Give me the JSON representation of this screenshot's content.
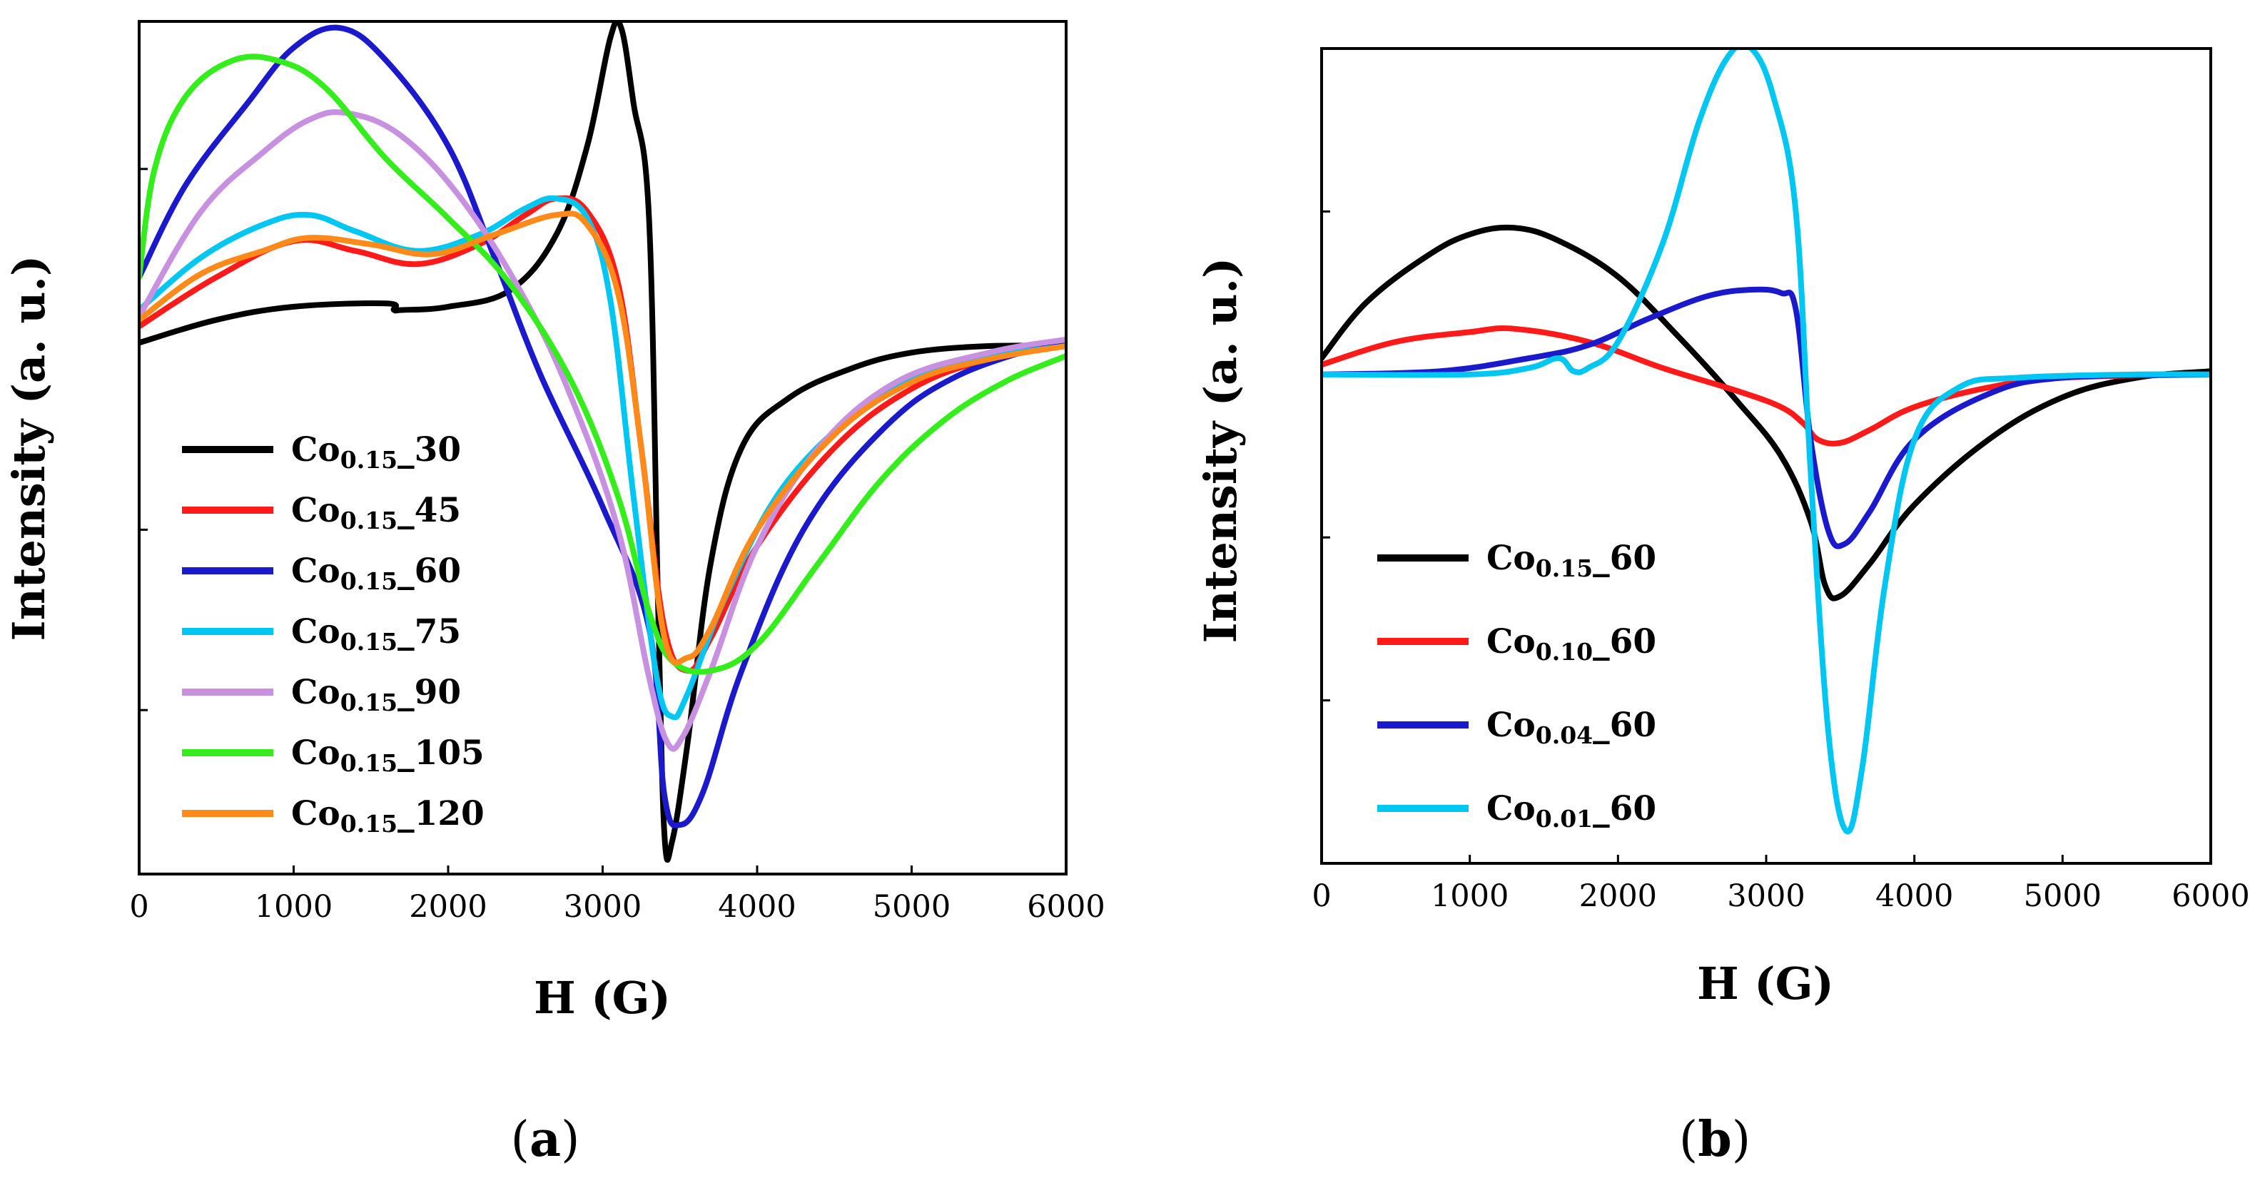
{
  "chart_data": [
    {
      "panel": "a",
      "panel_label_parts": [
        "(",
        "a",
        ")"
      ],
      "type": "line",
      "xlabel": "H (G)",
      "ylabel": "Intensity (a. u.)",
      "xlim": [
        0,
        6000
      ],
      "ylim": [
        -1.6,
        1.0
      ],
      "x_ticks": [
        0,
        1000,
        2000,
        3000,
        4000,
        5000,
        6000
      ],
      "y_ticks_unlabeled": [
        -1.1,
        -0.55,
        0.55
      ],
      "grid": false,
      "legend_position": "lower-left",
      "series": [
        {
          "name": "Co0.15_30",
          "label_base": "Co",
          "label_sub": "0.15",
          "label_suffix": "_30",
          "color": "#000000",
          "points": [
            [
              0,
              0.02
            ],
            [
              500,
              0.09
            ],
            [
              1000,
              0.13
            ],
            [
              1600,
              0.14
            ],
            [
              1650,
              0.12
            ],
            [
              1700,
              0.12
            ],
            [
              2000,
              0.13
            ],
            [
              2400,
              0.18
            ],
            [
              2700,
              0.35
            ],
            [
              2900,
              0.62
            ],
            [
              3050,
              0.95
            ],
            [
              3120,
              0.98
            ],
            [
              3200,
              0.75
            ],
            [
              3300,
              0.4
            ],
            [
              3360,
              -0.8
            ],
            [
              3400,
              -1.48
            ],
            [
              3450,
              -1.5
            ],
            [
              3550,
              -1.2
            ],
            [
              3700,
              -0.65
            ],
            [
              3900,
              -0.3
            ],
            [
              4200,
              -0.15
            ],
            [
              4600,
              -0.06
            ],
            [
              5000,
              -0.01
            ],
            [
              5500,
              0.01
            ],
            [
              6000,
              0.01
            ]
          ]
        },
        {
          "name": "Co0.15_45",
          "label_base": "Co",
          "label_sub": "0.15",
          "label_suffix": "_45",
          "color": "#ff1a1a",
          "points": [
            [
              0,
              0.07
            ],
            [
              500,
              0.22
            ],
            [
              1000,
              0.33
            ],
            [
              1400,
              0.3
            ],
            [
              1800,
              0.26
            ],
            [
              2200,
              0.32
            ],
            [
              2500,
              0.41
            ],
            [
              2700,
              0.46
            ],
            [
              2900,
              0.42
            ],
            [
              3100,
              0.2
            ],
            [
              3250,
              -0.3
            ],
            [
              3400,
              -0.85
            ],
            [
              3550,
              -0.98
            ],
            [
              3700,
              -0.88
            ],
            [
              4000,
              -0.6
            ],
            [
              4500,
              -0.3
            ],
            [
              5000,
              -0.12
            ],
            [
              5500,
              -0.03
            ],
            [
              6000,
              0.01
            ]
          ]
        },
        {
          "name": "Co0.15_60",
          "label_base": "Co",
          "label_sub": "0.15",
          "label_suffix": "_60",
          "color": "#1a1acc",
          "points": [
            [
              0,
              0.22
            ],
            [
              300,
              0.5
            ],
            [
              700,
              0.75
            ],
            [
              1000,
              0.92
            ],
            [
              1300,
              0.98
            ],
            [
              1600,
              0.88
            ],
            [
              2000,
              0.62
            ],
            [
              2300,
              0.28
            ],
            [
              2600,
              -0.08
            ],
            [
              3000,
              -0.48
            ],
            [
              3300,
              -0.85
            ],
            [
              3400,
              -1.36
            ],
            [
              3500,
              -1.45
            ],
            [
              3650,
              -1.35
            ],
            [
              3900,
              -0.98
            ],
            [
              4300,
              -0.55
            ],
            [
              4800,
              -0.25
            ],
            [
              5300,
              -0.08
            ],
            [
              6000,
              0.03
            ]
          ]
        },
        {
          "name": "Co0.15_75",
          "label_base": "Co",
          "label_sub": "0.15",
          "label_suffix": "_75",
          "color": "#00c6f2",
          "points": [
            [
              0,
              0.12
            ],
            [
              400,
              0.28
            ],
            [
              800,
              0.38
            ],
            [
              1100,
              0.41
            ],
            [
              1400,
              0.36
            ],
            [
              1800,
              0.3
            ],
            [
              2200,
              0.35
            ],
            [
              2500,
              0.43
            ],
            [
              2700,
              0.46
            ],
            [
              2900,
              0.4
            ],
            [
              3050,
              0.15
            ],
            [
              3200,
              -0.45
            ],
            [
              3350,
              -1.0
            ],
            [
              3450,
              -1.12
            ],
            [
              3550,
              -1.05
            ],
            [
              3800,
              -0.75
            ],
            [
              4200,
              -0.4
            ],
            [
              4800,
              -0.14
            ],
            [
              5300,
              -0.04
            ],
            [
              6000,
              0.01
            ]
          ]
        },
        {
          "name": "Co0.15_90",
          "label_base": "Co",
          "label_sub": "0.15",
          "label_suffix": "_90",
          "color": "#c890e0",
          "points": [
            [
              0,
              0.1
            ],
            [
              400,
              0.42
            ],
            [
              800,
              0.6
            ],
            [
              1100,
              0.7
            ],
            [
              1350,
              0.72
            ],
            [
              1700,
              0.65
            ],
            [
              2100,
              0.45
            ],
            [
              2500,
              0.15
            ],
            [
              2800,
              -0.15
            ],
            [
              3100,
              -0.55
            ],
            [
              3300,
              -1.0
            ],
            [
              3420,
              -1.2
            ],
            [
              3520,
              -1.18
            ],
            [
              3700,
              -0.98
            ],
            [
              4000,
              -0.6
            ],
            [
              4400,
              -0.3
            ],
            [
              4900,
              -0.1
            ],
            [
              5500,
              -0.01
            ],
            [
              6000,
              0.03
            ]
          ]
        },
        {
          "name": "Co0.15_105",
          "label_base": "Co",
          "label_sub": "0.15",
          "label_suffix": "_105",
          "color": "#33ee1a",
          "points": [
            [
              0,
              0.22
            ],
            [
              100,
              0.55
            ],
            [
              300,
              0.77
            ],
            [
              600,
              0.88
            ],
            [
              900,
              0.88
            ],
            [
              1200,
              0.8
            ],
            [
              1600,
              0.58
            ],
            [
              2000,
              0.4
            ],
            [
              2400,
              0.2
            ],
            [
              2800,
              -0.1
            ],
            [
              3100,
              -0.45
            ],
            [
              3300,
              -0.8
            ],
            [
              3450,
              -0.95
            ],
            [
              3700,
              -0.98
            ],
            [
              4000,
              -0.9
            ],
            [
              4400,
              -0.65
            ],
            [
              4800,
              -0.4
            ],
            [
              5200,
              -0.22
            ],
            [
              5600,
              -0.1
            ],
            [
              6000,
              -0.02
            ]
          ]
        },
        {
          "name": "Co0.15_120",
          "label_base": "Co",
          "label_sub": "0.15",
          "label_suffix": "_120",
          "color": "#ff8a1a",
          "points": [
            [
              0,
              0.09
            ],
            [
              400,
              0.23
            ],
            [
              800,
              0.3
            ],
            [
              1100,
              0.34
            ],
            [
              1500,
              0.32
            ],
            [
              1900,
              0.29
            ],
            [
              2300,
              0.35
            ],
            [
              2700,
              0.41
            ],
            [
              2900,
              0.38
            ],
            [
              3100,
              0.17
            ],
            [
              3250,
              -0.3
            ],
            [
              3400,
              -0.88
            ],
            [
              3550,
              -0.94
            ],
            [
              3700,
              -0.85
            ],
            [
              4000,
              -0.55
            ],
            [
              4500,
              -0.26
            ],
            [
              5000,
              -0.1
            ],
            [
              5500,
              -0.03
            ],
            [
              6000,
              0.01
            ]
          ]
        }
      ]
    },
    {
      "panel": "b",
      "panel_label_parts": [
        "(",
        "b",
        ")"
      ],
      "type": "line",
      "xlabel": "H (G)",
      "ylabel": "Intensity (a. u.)",
      "xlim": [
        0,
        6000
      ],
      "ylim": [
        -1.5,
        1.0
      ],
      "x_ticks": [
        0,
        1000,
        2000,
        3000,
        4000,
        5000,
        6000
      ],
      "y_ticks_unlabeled": [
        -1.0,
        -0.5,
        0.5
      ],
      "grid": false,
      "legend_position": "lower-left",
      "series": [
        {
          "name": "Co0.15_60",
          "label_base": "Co",
          "label_sub": "0.15",
          "label_suffix": "_60",
          "color": "#000000",
          "points": [
            [
              0,
              0.05
            ],
            [
              300,
              0.22
            ],
            [
              700,
              0.36
            ],
            [
              1000,
              0.43
            ],
            [
              1300,
              0.45
            ],
            [
              1600,
              0.41
            ],
            [
              2000,
              0.3
            ],
            [
              2400,
              0.12
            ],
            [
              2800,
              -0.08
            ],
            [
              3100,
              -0.25
            ],
            [
              3300,
              -0.45
            ],
            [
              3400,
              -0.65
            ],
            [
              3500,
              -0.68
            ],
            [
              3700,
              -0.58
            ],
            [
              4000,
              -0.4
            ],
            [
              4500,
              -0.2
            ],
            [
              5000,
              -0.07
            ],
            [
              5500,
              -0.01
            ],
            [
              6000,
              0.01
            ]
          ]
        },
        {
          "name": "Co0.10_60",
          "label_base": "Co",
          "label_sub": "0.10",
          "label_suffix": "_60",
          "color": "#ff1a1a",
          "points": [
            [
              0,
              0.03
            ],
            [
              500,
              0.1
            ],
            [
              1000,
              0.13
            ],
            [
              1300,
              0.14
            ],
            [
              1800,
              0.1
            ],
            [
              2300,
              0.02
            ],
            [
              2800,
              -0.05
            ],
            [
              3100,
              -0.1
            ],
            [
              3250,
              -0.15
            ],
            [
              3350,
              -0.2
            ],
            [
              3500,
              -0.21
            ],
            [
              3700,
              -0.17
            ],
            [
              4000,
              -0.1
            ],
            [
              4500,
              -0.04
            ],
            [
              5000,
              -0.01
            ],
            [
              6000,
              0.0
            ]
          ]
        },
        {
          "name": "Co0.04_60",
          "label_base": "Co",
          "label_sub": "0.04",
          "label_suffix": "_60",
          "color": "#1a1acc",
          "points": [
            [
              0,
              0.0
            ],
            [
              800,
              0.01
            ],
            [
              1400,
              0.05
            ],
            [
              1800,
              0.09
            ],
            [
              2200,
              0.17
            ],
            [
              2600,
              0.24
            ],
            [
              2900,
              0.26
            ],
            [
              3100,
              0.25
            ],
            [
              3200,
              0.2
            ],
            [
              3300,
              -0.2
            ],
            [
              3420,
              -0.48
            ],
            [
              3530,
              -0.52
            ],
            [
              3700,
              -0.42
            ],
            [
              4000,
              -0.2
            ],
            [
              4500,
              -0.06
            ],
            [
              5000,
              -0.01
            ],
            [
              6000,
              0.0
            ]
          ]
        },
        {
          "name": "Co0.01_60",
          "label_base": "Co",
          "label_sub": "0.01",
          "label_suffix": "_60",
          "color": "#00c6f2",
          "points": [
            [
              0,
              0.0
            ],
            [
              1000,
              0.0
            ],
            [
              1400,
              0.02
            ],
            [
              1600,
              0.05
            ],
            [
              1700,
              0.01
            ],
            [
              1800,
              0.02
            ],
            [
              2000,
              0.1
            ],
            [
              2300,
              0.4
            ],
            [
              2550,
              0.78
            ],
            [
              2750,
              0.98
            ],
            [
              2900,
              1.0
            ],
            [
              3050,
              0.85
            ],
            [
              3200,
              0.5
            ],
            [
              3300,
              -0.3
            ],
            [
              3420,
              -1.1
            ],
            [
              3540,
              -1.4
            ],
            [
              3650,
              -1.2
            ],
            [
              3800,
              -0.65
            ],
            [
              4000,
              -0.2
            ],
            [
              4300,
              -0.04
            ],
            [
              4700,
              -0.01
            ],
            [
              5500,
              0.0
            ],
            [
              6000,
              0.0
            ]
          ]
        }
      ]
    }
  ]
}
